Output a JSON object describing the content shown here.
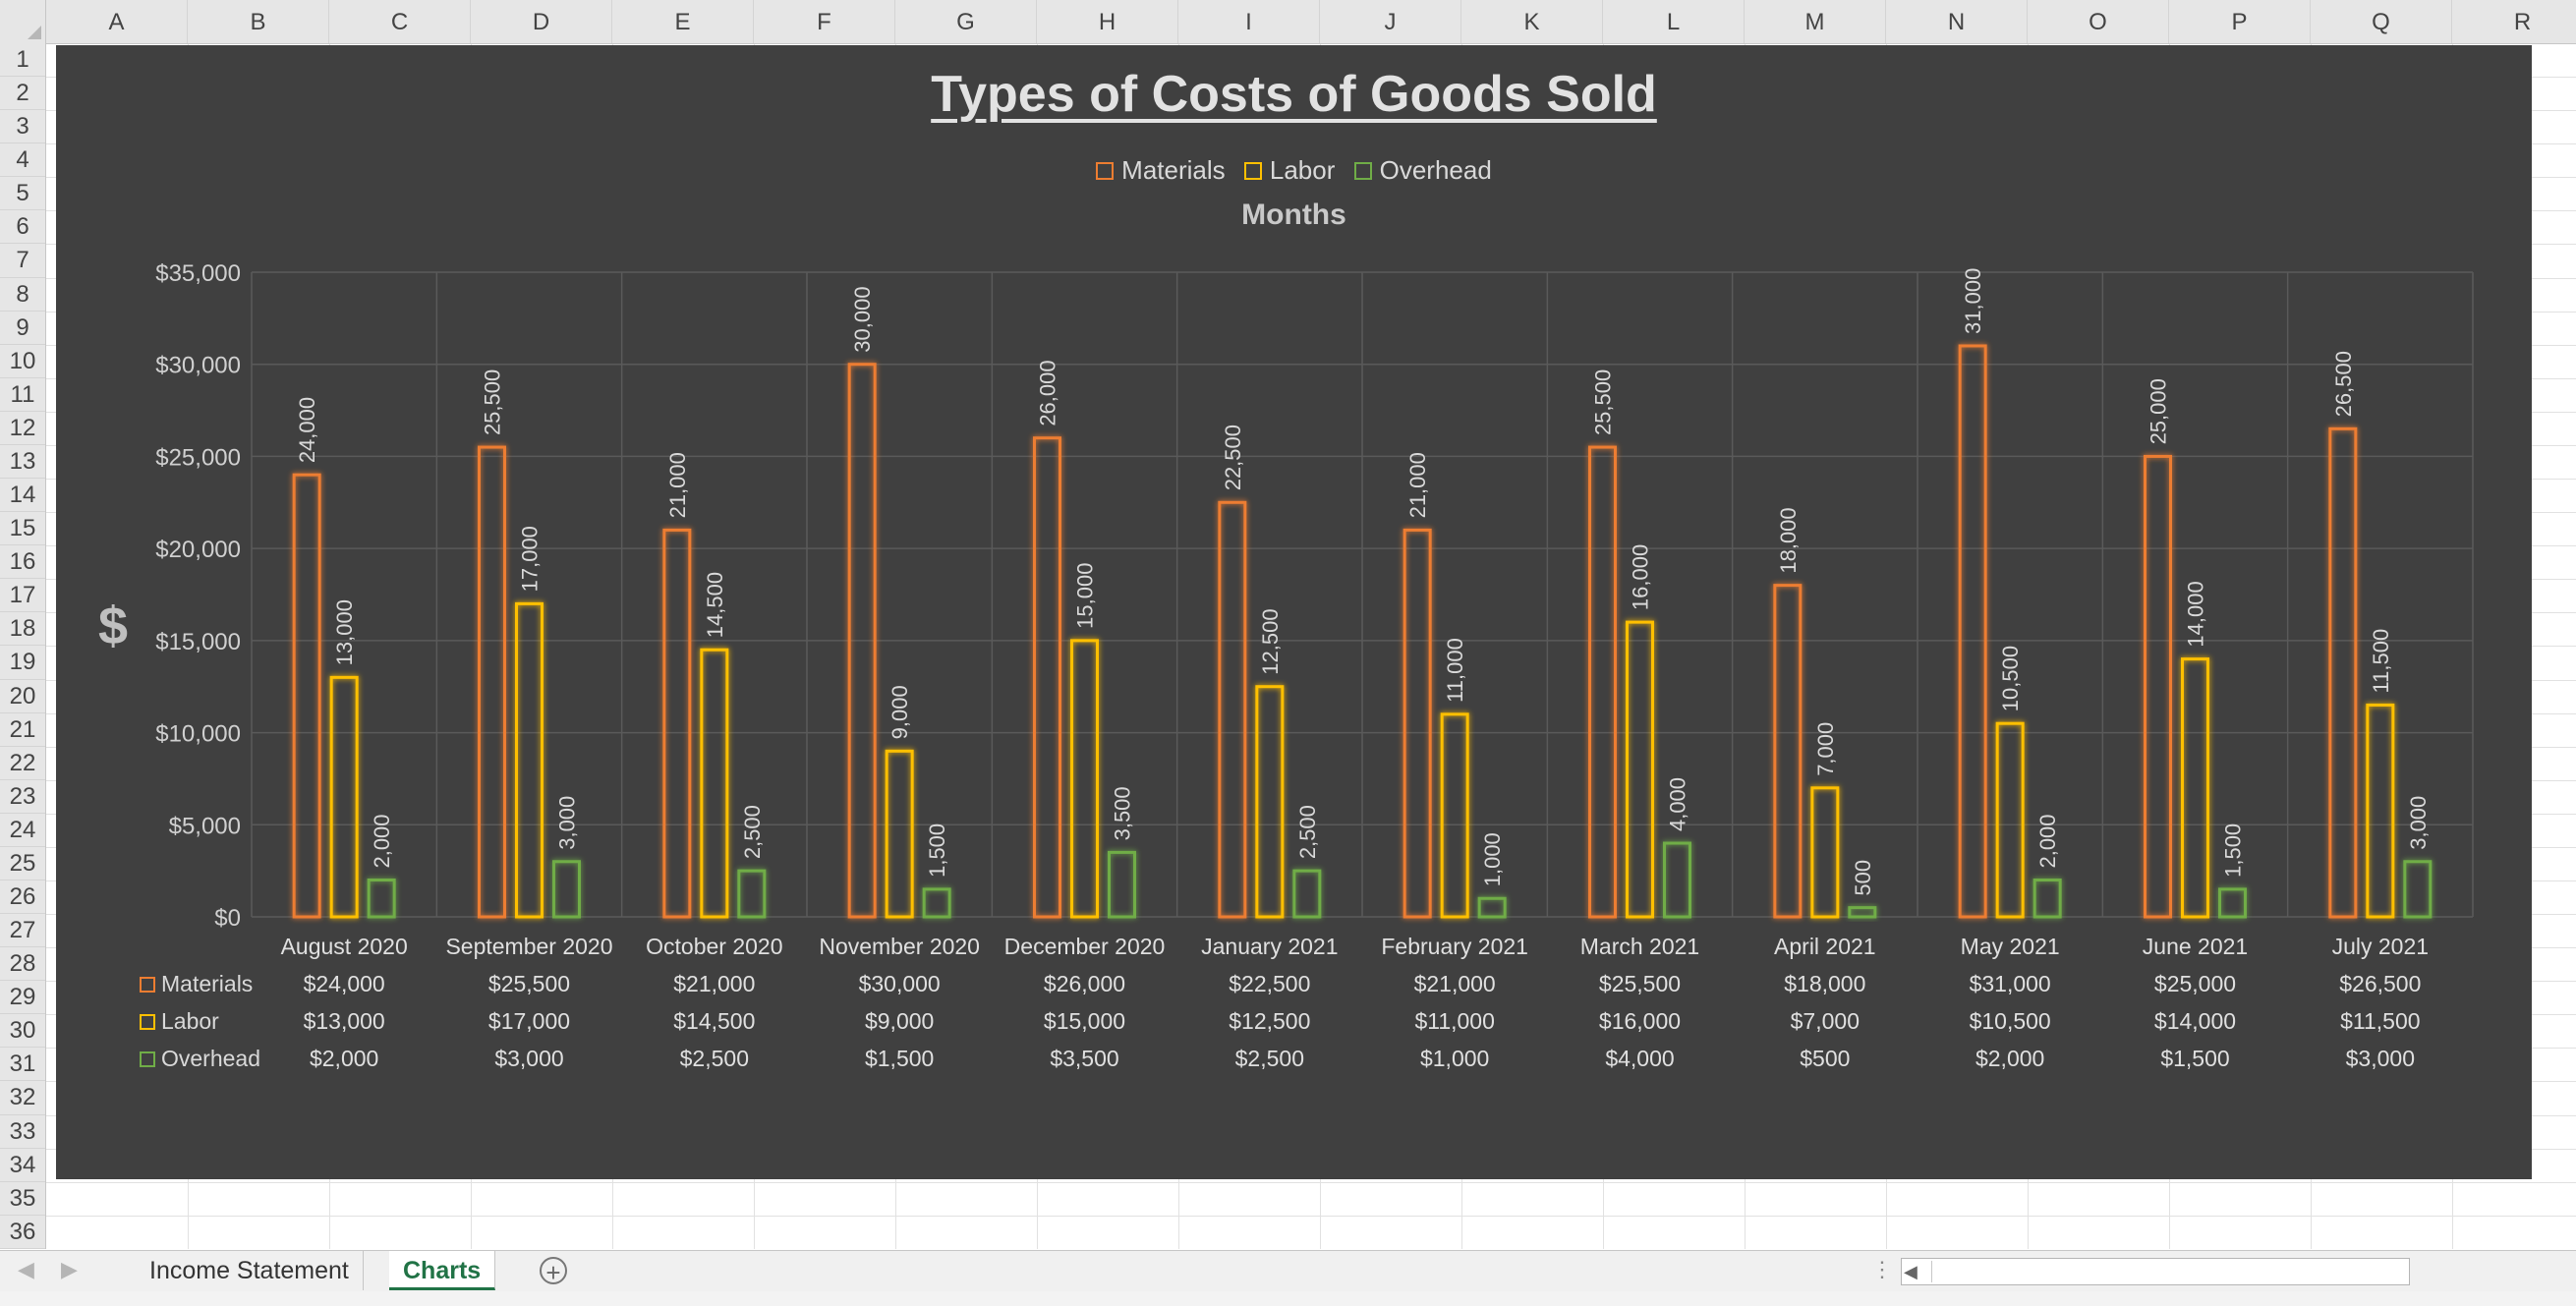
{
  "columns": [
    "A",
    "B",
    "C",
    "D",
    "E",
    "F",
    "G",
    "H",
    "I",
    "J",
    "K",
    "L",
    "M",
    "N",
    "O",
    "P",
    "Q",
    "R"
  ],
  "rows": [
    "1",
    "2",
    "3",
    "4",
    "5",
    "6",
    "7",
    "8",
    "9",
    "10",
    "11",
    "12",
    "13",
    "14",
    "15",
    "16",
    "17",
    "18",
    "19",
    "20",
    "21",
    "22",
    "23",
    "24",
    "25",
    "26",
    "27",
    "28",
    "29",
    "30",
    "31",
    "32",
    "33",
    "34",
    "35",
    "36"
  ],
  "colors": {
    "materials": "#ed7d31",
    "labor": "#ffc000",
    "overhead": "#70ad47",
    "chart_bg": "#404040",
    "accent": "#217346"
  },
  "chart_data": {
    "type": "bar",
    "title": "Types of Costs of Goods Sold",
    "xlabel": "Months",
    "ylabel": "$",
    "legend_position": "top",
    "ylim": [
      0,
      35000
    ],
    "yticks": [
      "$0",
      "$5,000",
      "$10,000",
      "$15,000",
      "$20,000",
      "$25,000",
      "$30,000",
      "$35,000"
    ],
    "categories": [
      "August 2020",
      "September 2020",
      "October 2020",
      "November 2020",
      "December 2020",
      "January 2021",
      "February 2021",
      "March 2021",
      "April 2021",
      "May 2021",
      "June 2021",
      "July 2021"
    ],
    "series": [
      {
        "name": "Materials",
        "values": [
          24000,
          25500,
          21000,
          30000,
          26000,
          22500,
          21000,
          25500,
          18000,
          31000,
          25000,
          26500
        ],
        "labels": [
          "24,000",
          "25,500",
          "21,000",
          "30,000",
          "26,000",
          "22,500",
          "21,000",
          "25,500",
          "18,000",
          "31,000",
          "25,000",
          "26,500"
        ],
        "table": [
          "$24,000",
          "$25,500",
          "$21,000",
          "$30,000",
          "$26,000",
          "$22,500",
          "$21,000",
          "$25,500",
          "$18,000",
          "$31,000",
          "$25,000",
          "$26,500"
        ]
      },
      {
        "name": "Labor",
        "values": [
          13000,
          17000,
          14500,
          9000,
          15000,
          12500,
          11000,
          16000,
          7000,
          10500,
          14000,
          11500
        ],
        "labels": [
          "13,000",
          "17,000",
          "14,500",
          "9,000",
          "15,000",
          "12,500",
          "11,000",
          "16,000",
          "7,000",
          "10,500",
          "14,000",
          "11,500"
        ],
        "table": [
          "$13,000",
          "$17,000",
          "$14,500",
          "$9,000",
          "$15,000",
          "$12,500",
          "$11,000",
          "$16,000",
          "$7,000",
          "$10,500",
          "$14,000",
          "$11,500"
        ]
      },
      {
        "name": "Overhead",
        "values": [
          2000,
          3000,
          2500,
          1500,
          3500,
          2500,
          1000,
          4000,
          500,
          2000,
          1500,
          3000
        ],
        "labels": [
          "2,000",
          "3,000",
          "2,500",
          "1,500",
          "3,500",
          "2,500",
          "1,000",
          "4,000",
          "500",
          "2,000",
          "1,500",
          "3,000"
        ],
        "table": [
          "$2,000",
          "$3,000",
          "$2,500",
          "$1,500",
          "$3,500",
          "$2,500",
          "$1,000",
          "$4,000",
          "$500",
          "$2,000",
          "$1,500",
          "$3,000"
        ]
      }
    ]
  },
  "tabs": {
    "income_statement": "Income Statement",
    "charts": "Charts",
    "add_icon": "plus-icon",
    "add_label": "+"
  }
}
